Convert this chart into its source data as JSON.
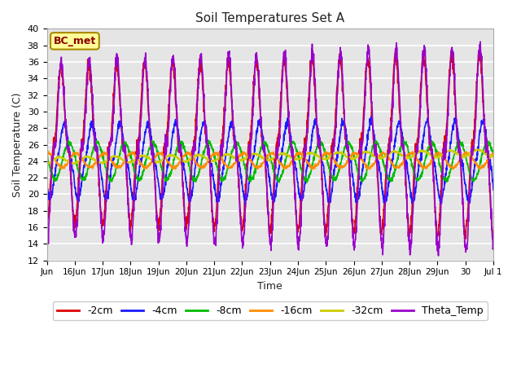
{
  "title": "Soil Temperatures Set A",
  "xlabel": "Time",
  "ylabel": "Soil Temperature (C)",
  "ylim": [
    12,
    40
  ],
  "annotation": "BC_met",
  "plot_bg": "#e5e5e5",
  "fig_bg": "#ffffff",
  "xtick_labels": [
    "Jun",
    "16Jun",
    "17Jun",
    "18Jun",
    "19Jun",
    "20Jun",
    "21Jun",
    "22Jun",
    "23Jun",
    "24Jun",
    "25Jun",
    "26Jun",
    "27Jun",
    "28Jun",
    "29Jun",
    "30",
    "Jul 1"
  ],
  "xtick_positions": [
    0,
    1,
    2,
    3,
    4,
    5,
    6,
    7,
    8,
    9,
    10,
    11,
    12,
    13,
    14,
    15,
    16
  ],
  "legend_colors": [
    "#dd0000",
    "#1a1aff",
    "#00bb00",
    "#ff8c00",
    "#cccc00",
    "#9900cc"
  ],
  "legend_labels": [
    "-2cm",
    "-4cm",
    "-8cm",
    "-16cm",
    "-32cm",
    "Theta_Temp"
  ]
}
